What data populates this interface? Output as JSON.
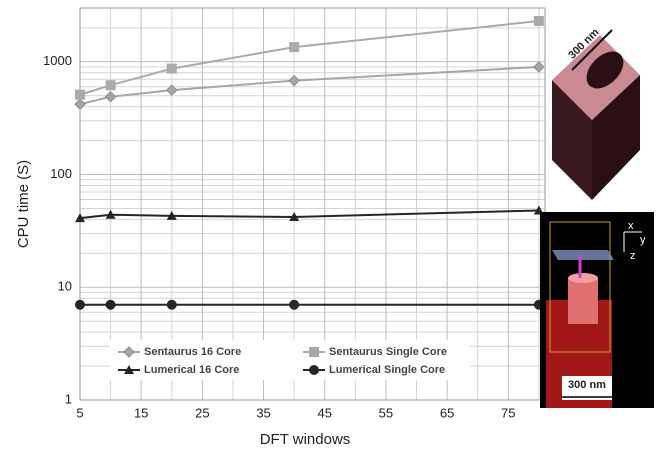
{
  "chart_data": {
    "type": "line",
    "x_label": "DFT windows",
    "y_label": "CPU time (S)",
    "x": [
      5,
      10,
      20,
      40,
      80
    ],
    "series": [
      {
        "name": "Sentaurus 16 Core",
        "color": "#a6a6a6",
        "marker": "diamond",
        "values": [
          420,
          490,
          560,
          680,
          900
        ]
      },
      {
        "name": "Sentaurus Single Core",
        "color": "#aaaaaa",
        "marker": "square",
        "values": [
          510,
          620,
          870,
          1350,
          2300
        ]
      },
      {
        "name": "Lumerical 16 Core",
        "color": "#262626",
        "marker": "triangle",
        "values": [
          41,
          44,
          43,
          42,
          48
        ]
      },
      {
        "name": "Lumerical Single Core",
        "color": "#262626",
        "marker": "circle",
        "values": [
          7,
          7,
          7,
          7,
          7
        ]
      }
    ],
    "xlim": [
      5,
      81
    ],
    "xticks": [
      5,
      15,
      25,
      35,
      45,
      55,
      65,
      75
    ],
    "ylim": [
      1,
      3000
    ],
    "yticks": [
      1,
      10,
      100,
      1000
    ],
    "log_y": true,
    "grid": true
  },
  "insets": {
    "top": {
      "label": "300 nm"
    },
    "bottom": {
      "axes": [
        "x",
        "y",
        "z"
      ],
      "label": "300 nm"
    }
  }
}
